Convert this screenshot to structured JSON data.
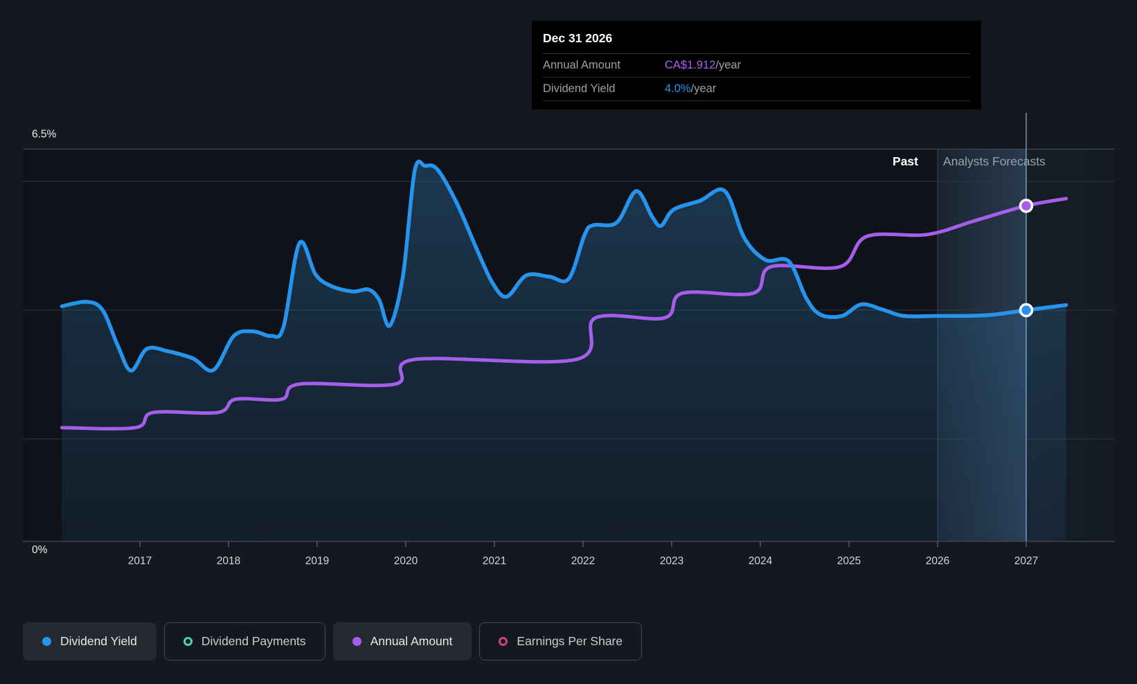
{
  "tooltip": {
    "date": "Dec 31 2026",
    "rows": [
      {
        "label": "Annual Amount",
        "value": "CA$1.912",
        "suffix": "/year",
        "value_color": "#ab5cf5"
      },
      {
        "label": "Dividend Yield",
        "value": "4.0%",
        "suffix": "/year",
        "value_color": "#2693ec"
      }
    ]
  },
  "annotations": {
    "past": "Past",
    "forecast": "Analysts Forecasts"
  },
  "axis": {
    "y_top_label": "6.5%",
    "y_bottom_label": "0%",
    "years": [
      "2017",
      "2018",
      "2019",
      "2020",
      "2021",
      "2022",
      "2023",
      "2024",
      "2025",
      "2026",
      "2027"
    ]
  },
  "legend": [
    {
      "label": "Dividend Yield",
      "marker": "filled",
      "color": "#2693ec",
      "active": true
    },
    {
      "label": "Dividend Payments",
      "marker": "ring",
      "color": "#45d4bc",
      "active": false
    },
    {
      "label": "Annual Amount",
      "marker": "filled",
      "color": "#a55eea",
      "active": true
    },
    {
      "label": "Earnings Per Share",
      "marker": "ring",
      "color": "#c9437f",
      "active": false
    }
  ],
  "chart_data": {
    "type": "area",
    "title": "Dividend history and forecast",
    "x_range": [
      2016.12,
      2027.45
    ],
    "yield_axis": {
      "min": 0,
      "max": 6.5,
      "unit": "%"
    },
    "gridlines_pct": [
      6.5,
      6,
      4,
      2
    ],
    "forecast_start_x": 2026.0,
    "crosshair_x": 2027.0,
    "amount_to_pct_scale": 2.94,
    "legend_position": "bottom",
    "series": [
      {
        "name": "Dividend Yield",
        "unit": "%",
        "color": "#2693ec",
        "style": "line+area",
        "points": [
          [
            2016.12,
            4.06
          ],
          [
            2016.4,
            4.13
          ],
          [
            2016.58,
            4.0
          ],
          [
            2016.75,
            3.45
          ],
          [
            2016.9,
            3.06
          ],
          [
            2017.08,
            3.4
          ],
          [
            2017.32,
            3.36
          ],
          [
            2017.6,
            3.25
          ],
          [
            2017.83,
            3.07
          ],
          [
            2018.06,
            3.6
          ],
          [
            2018.28,
            3.67
          ],
          [
            2018.48,
            3.6
          ],
          [
            2018.62,
            3.74
          ],
          [
            2018.8,
            5.04
          ],
          [
            2018.98,
            4.56
          ],
          [
            2019.15,
            4.38
          ],
          [
            2019.4,
            4.29
          ],
          [
            2019.58,
            4.32
          ],
          [
            2019.7,
            4.16
          ],
          [
            2019.82,
            3.76
          ],
          [
            2019.97,
            4.55
          ],
          [
            2020.1,
            6.16
          ],
          [
            2020.22,
            6.24
          ],
          [
            2020.36,
            6.18
          ],
          [
            2020.58,
            5.65
          ],
          [
            2020.8,
            4.95
          ],
          [
            2020.98,
            4.42
          ],
          [
            2021.14,
            4.21
          ],
          [
            2021.36,
            4.54
          ],
          [
            2021.62,
            4.52
          ],
          [
            2021.84,
            4.49
          ],
          [
            2022.02,
            5.18
          ],
          [
            2022.12,
            5.32
          ],
          [
            2022.38,
            5.36
          ],
          [
            2022.6,
            5.85
          ],
          [
            2022.78,
            5.45
          ],
          [
            2022.88,
            5.31
          ],
          [
            2023.02,
            5.56
          ],
          [
            2023.32,
            5.7
          ],
          [
            2023.6,
            5.85
          ],
          [
            2023.82,
            5.12
          ],
          [
            2024.06,
            4.78
          ],
          [
            2024.32,
            4.76
          ],
          [
            2024.52,
            4.18
          ],
          [
            2024.68,
            3.93
          ],
          [
            2024.92,
            3.91
          ],
          [
            2025.14,
            4.09
          ],
          [
            2025.38,
            4.01
          ],
          [
            2025.62,
            3.91
          ],
          [
            2026.0,
            3.91
          ],
          [
            2026.55,
            3.92
          ],
          [
            2027.0,
            4.0
          ],
          [
            2027.45,
            4.08
          ]
        ]
      },
      {
        "name": "Annual Amount",
        "unit": "CA$/year",
        "color": "#a55eea",
        "style": "line",
        "points": [
          [
            2016.12,
            0.74
          ],
          [
            2016.95,
            0.74
          ],
          [
            2017.15,
            0.82
          ],
          [
            2017.88,
            0.82
          ],
          [
            2018.08,
            0.89
          ],
          [
            2018.6,
            0.89
          ],
          [
            2018.8,
            0.97
          ],
          [
            2019.88,
            0.97
          ],
          [
            2020.1,
            1.1
          ],
          [
            2021.92,
            1.1
          ],
          [
            2022.14,
            1.32
          ],
          [
            2022.92,
            1.32
          ],
          [
            2023.12,
            1.45
          ],
          [
            2023.92,
            1.45
          ],
          [
            2024.12,
            1.59
          ],
          [
            2024.9,
            1.59
          ],
          [
            2025.2,
            1.75
          ],
          [
            2025.88,
            1.76
          ],
          [
            2026.4,
            1.83
          ],
          [
            2027.0,
            1.912
          ],
          [
            2027.45,
            1.95
          ]
        ]
      }
    ],
    "markers": [
      {
        "series": "Annual Amount",
        "x": 2027.0,
        "value": 1.912,
        "label": "CA$1.912/year"
      },
      {
        "series": "Dividend Yield",
        "x": 2027.0,
        "value": 4.0,
        "label": "4.0%/year"
      }
    ]
  }
}
